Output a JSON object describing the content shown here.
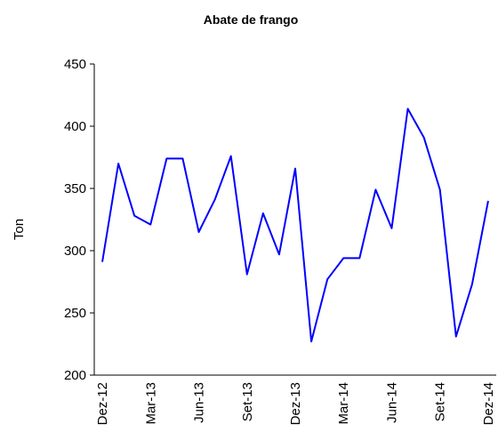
{
  "chart_data": {
    "type": "line",
    "title": "Abate de frango",
    "y_label": "Ton",
    "categories": [
      "Dez-12",
      null,
      null,
      "Mar-13",
      null,
      null,
      "Jun-13",
      null,
      null,
      "Set-13",
      null,
      null,
      "Dez-13",
      null,
      null,
      "Mar-14",
      null,
      null,
      "Jun-14",
      null,
      null,
      "Set-14",
      null,
      null,
      "Dez-14"
    ],
    "series": [
      {
        "name": "Abate de frango",
        "color": "#0000ff",
        "values": [
          291,
          370,
          328,
          321,
          374,
          374,
          315,
          341,
          376,
          281,
          330,
          297,
          366,
          227,
          277,
          294,
          294,
          349,
          318,
          414,
          391,
          349,
          231,
          273,
          340
        ]
      }
    ],
    "ylim": [
      200,
      450
    ],
    "yticks": [
      200,
      250,
      300,
      350,
      400,
      450
    ],
    "grid": false
  }
}
